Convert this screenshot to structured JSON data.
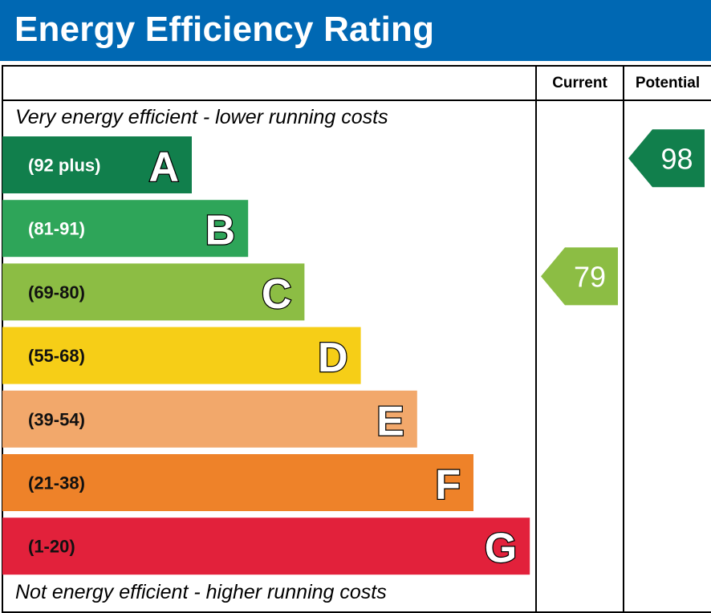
{
  "header": {
    "title": "Energy Efficiency Rating"
  },
  "columns": {
    "current": "Current",
    "potential": "Potential"
  },
  "notes": {
    "top": "Very energy efficient - lower running costs",
    "bottom": "Not energy efficient - higher running costs"
  },
  "chart_data": {
    "type": "bar",
    "categories": [
      "A",
      "B",
      "C",
      "D",
      "E",
      "F",
      "G"
    ],
    "range_labels": [
      "(92 plus)",
      "(81-91)",
      "(69-80)",
      "(55-68)",
      "(39-54)",
      "(21-38)",
      "(1-20)"
    ],
    "ranges": [
      [
        92,
        100
      ],
      [
        81,
        91
      ],
      [
        69,
        80
      ],
      [
        55,
        68
      ],
      [
        39,
        54
      ],
      [
        21,
        38
      ],
      [
        1,
        20
      ]
    ],
    "colors": [
      "#117f4c",
      "#2ea559",
      "#8cbd44",
      "#f6ce17",
      "#f2a86b",
      "#ee8229",
      "#e2213b"
    ],
    "range_label_colors": [
      "#ffffff",
      "#ffffff",
      "#111111",
      "#111111",
      "#111111",
      "#111111",
      "#111111"
    ],
    "current": {
      "value": 79,
      "band": "C",
      "color": "#8cbd44"
    },
    "potential": {
      "value": 98,
      "band": "A",
      "color": "#117f4c"
    }
  }
}
